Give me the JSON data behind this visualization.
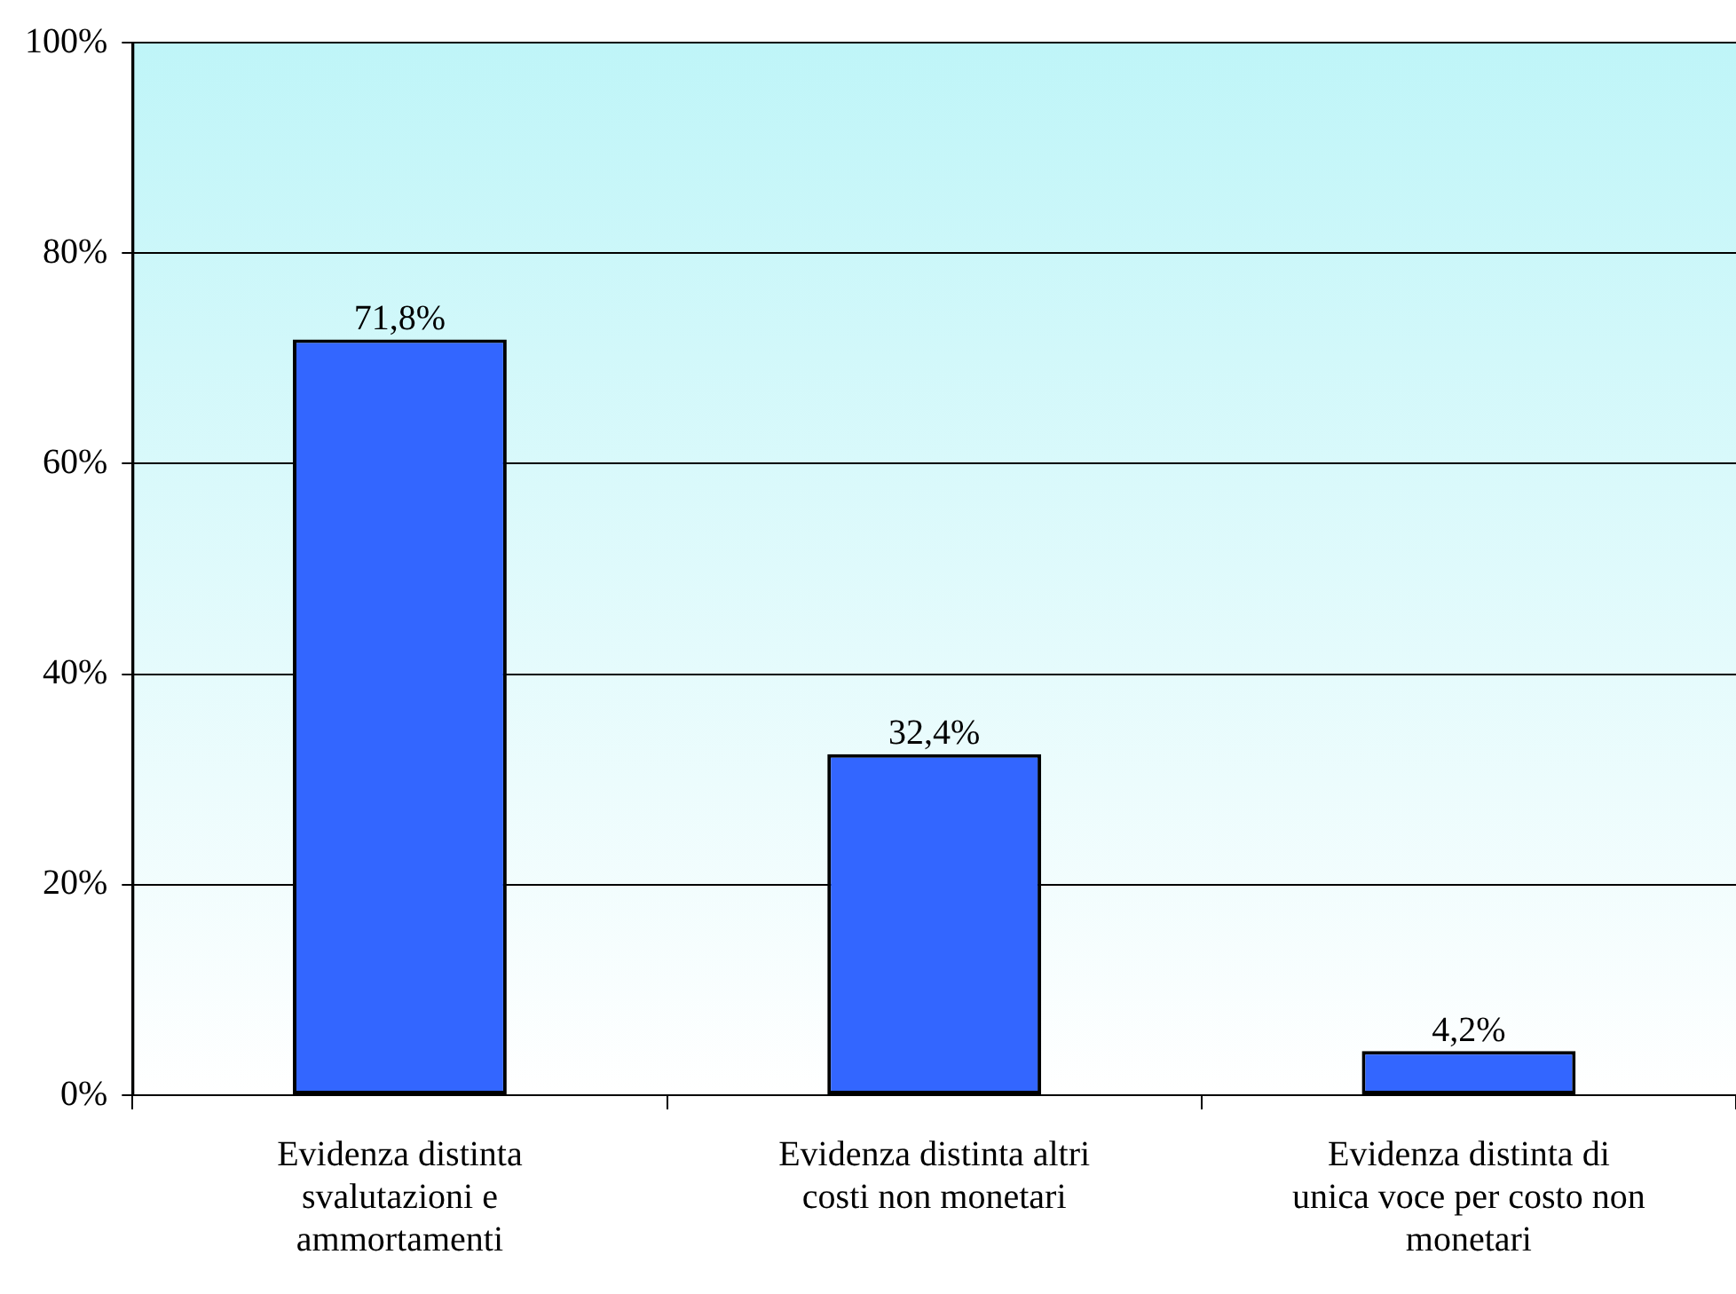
{
  "chart_data": {
    "type": "bar",
    "categories": [
      "Evidenza distinta svalutazioni e ammortamenti",
      "Evidenza distinta altri costi non monetari",
      "Evidenza distinta di unica voce per costo non monetari"
    ],
    "values": [
      71.8,
      32.4,
      4.2
    ],
    "color": "#3366ff",
    "value_labels": [
      "71,8%",
      "32,4%",
      "4,2%"
    ],
    "ylim": [
      0,
      100
    ],
    "yticks": [
      {
        "value": 0,
        "label": "0%"
      },
      {
        "value": 20,
        "label": "20%"
      },
      {
        "value": 40,
        "label": "40%"
      },
      {
        "value": 60,
        "label": "60%"
      },
      {
        "value": 80,
        "label": "80%"
      },
      {
        "value": 100,
        "label": "100%"
      }
    ],
    "grid": "y",
    "legend": false
  }
}
